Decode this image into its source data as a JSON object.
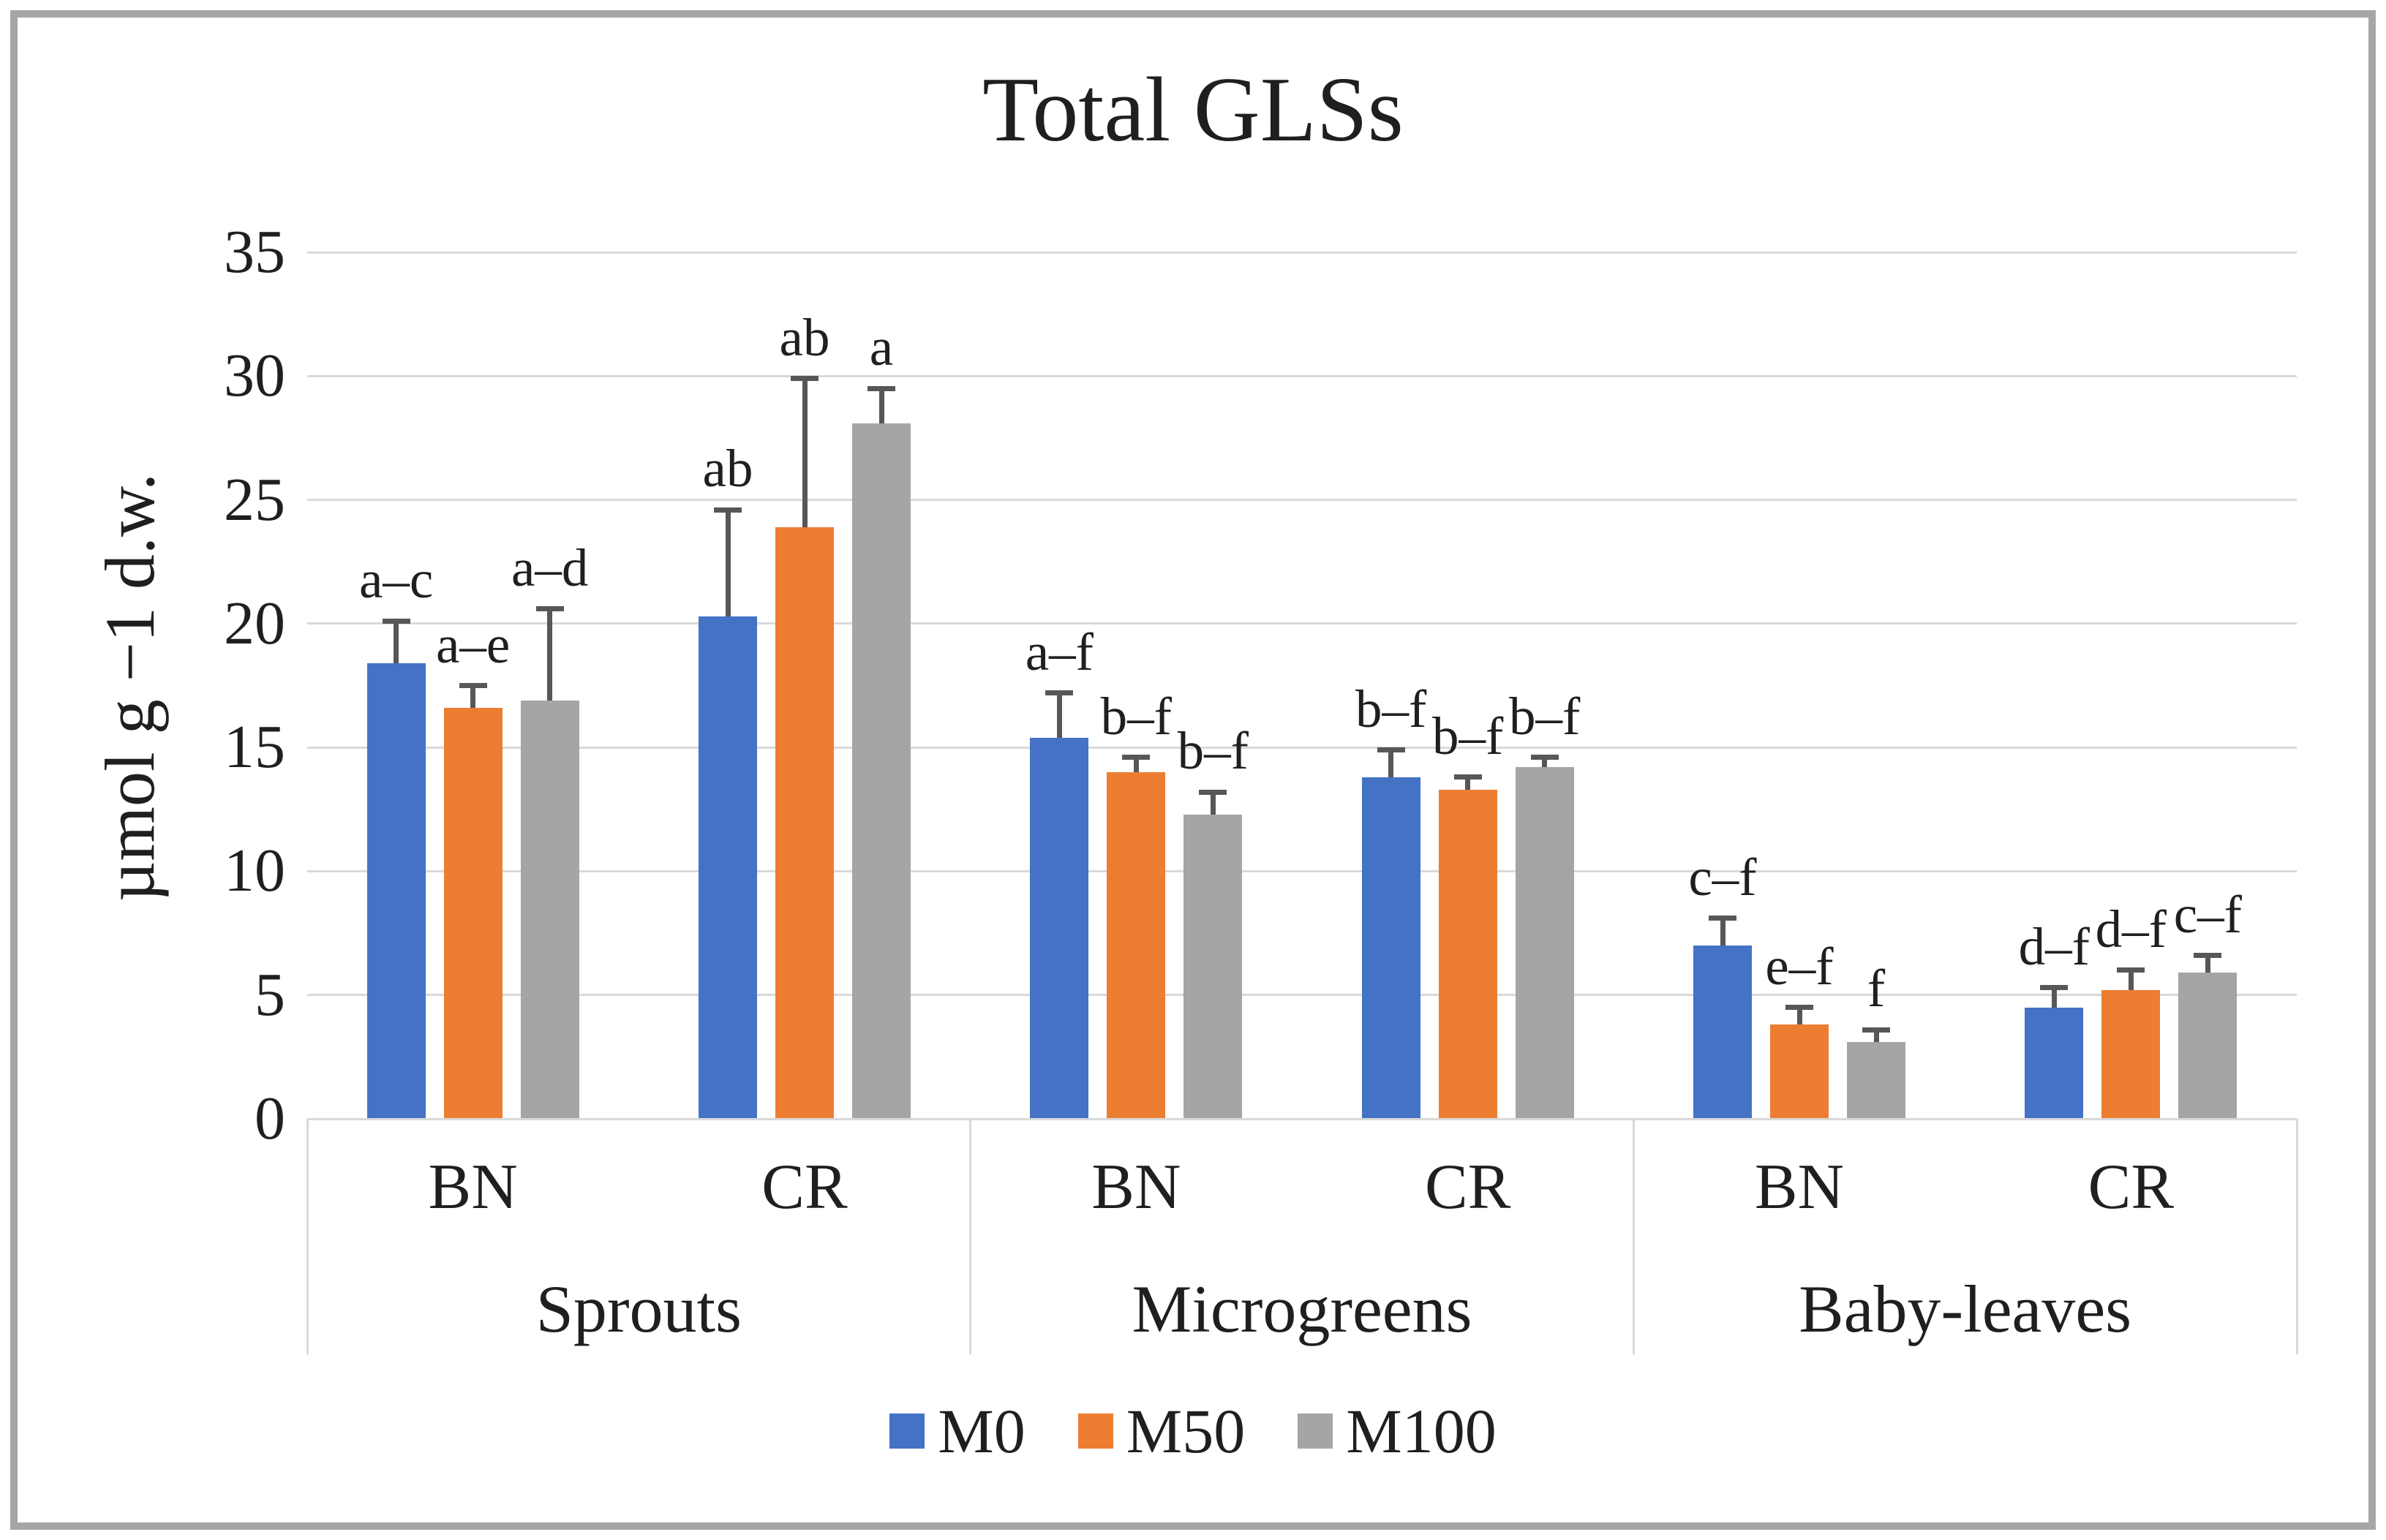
{
  "figure": {
    "title": "Total GLSs",
    "y_axis_title": "µmol g −1 d.w."
  },
  "legend": [
    {
      "name": "M0",
      "color": "#4472C4"
    },
    {
      "name": "M50",
      "color": "#ED7D31"
    },
    {
      "name": "M100",
      "color": "#A5A5A5"
    }
  ],
  "chart_data": {
    "type": "bar",
    "title": "Total GLSs",
    "ylabel": "µmol g −1 d.w.",
    "ylim": [
      0,
      35
    ],
    "y_ticks": [
      0,
      5,
      10,
      15,
      20,
      25,
      30,
      35
    ],
    "grid": true,
    "legend_position": "bottom",
    "group_labels": [
      "Sprouts",
      "Microgreens",
      "Baby-leaves"
    ],
    "categories": [
      {
        "group": "Sprouts",
        "label": "BN"
      },
      {
        "group": "Sprouts",
        "label": "CR"
      },
      {
        "group": "Microgreens",
        "label": "BN"
      },
      {
        "group": "Microgreens",
        "label": "CR"
      },
      {
        "group": "Baby-leaves",
        "label": "BN"
      },
      {
        "group": "Baby-leaves",
        "label": "CR"
      }
    ],
    "series": [
      {
        "name": "M0",
        "color": "#4472C4",
        "values": [
          18.4,
          20.3,
          15.4,
          13.8,
          7.0,
          4.5
        ],
        "error_plus": [
          1.7,
          4.3,
          1.8,
          1.1,
          1.1,
          0.8
        ],
        "sig_letters": [
          "a–c",
          "ab",
          "a–f",
          "b–f",
          "c–f",
          "d–f"
        ]
      },
      {
        "name": "M50",
        "color": "#ED7D31",
        "values": [
          16.6,
          23.9,
          14.0,
          13.3,
          3.8,
          5.2
        ],
        "error_plus": [
          0.9,
          6.0,
          0.6,
          0.5,
          0.7,
          0.8
        ],
        "sig_letters": [
          "a–e",
          "ab",
          "b–f",
          "b–f",
          "e–f",
          "d–f"
        ]
      },
      {
        "name": "M100",
        "color": "#A5A5A5",
        "values": [
          16.9,
          28.1,
          12.3,
          14.2,
          3.1,
          5.9
        ],
        "error_plus": [
          3.7,
          1.4,
          0.9,
          0.4,
          0.5,
          0.7
        ],
        "sig_letters": [
          "a–d",
          "a",
          "b–f",
          "b–f",
          "f",
          "c–f"
        ]
      }
    ]
  }
}
